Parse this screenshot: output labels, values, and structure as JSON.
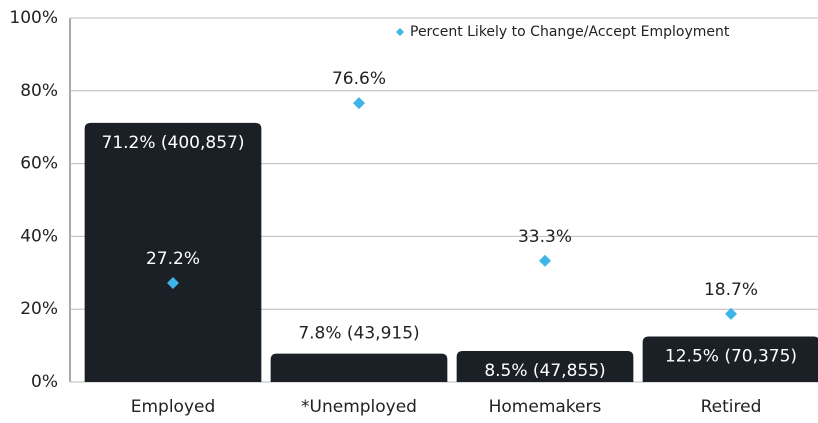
{
  "chart_data": {
    "type": "bar",
    "categories": [
      "Employed",
      "*Unemployed",
      "Homemakers",
      "Retired"
    ],
    "values": [
      71.2,
      7.8,
      8.5,
      12.5
    ],
    "value_labels": [
      "71.2% (400,857)",
      "7.8% (43,915)",
      "8.5% (47,855)",
      "12.5% (70,375)"
    ],
    "color": "#1b2027",
    "series": [
      {
        "name": "Percent Likely to Change/Accept Employment",
        "type": "scatter",
        "color": "#3db5e8",
        "values": [
          27.2,
          76.6,
          33.3,
          18.7
        ],
        "value_labels": [
          "27.2%",
          "76.6%",
          "33.3%",
          "18.7%"
        ]
      }
    ],
    "ylim": [
      0,
      100
    ],
    "yticks": [
      {
        "value": 0,
        "label": "0%"
      },
      {
        "value": 20,
        "label": "20%"
      },
      {
        "value": 40,
        "label": "40%"
      },
      {
        "value": 60,
        "label": "60%"
      },
      {
        "value": 80,
        "label": "80%"
      },
      {
        "value": 100,
        "label": "100%"
      }
    ],
    "grid": true,
    "legend": "top-right"
  }
}
